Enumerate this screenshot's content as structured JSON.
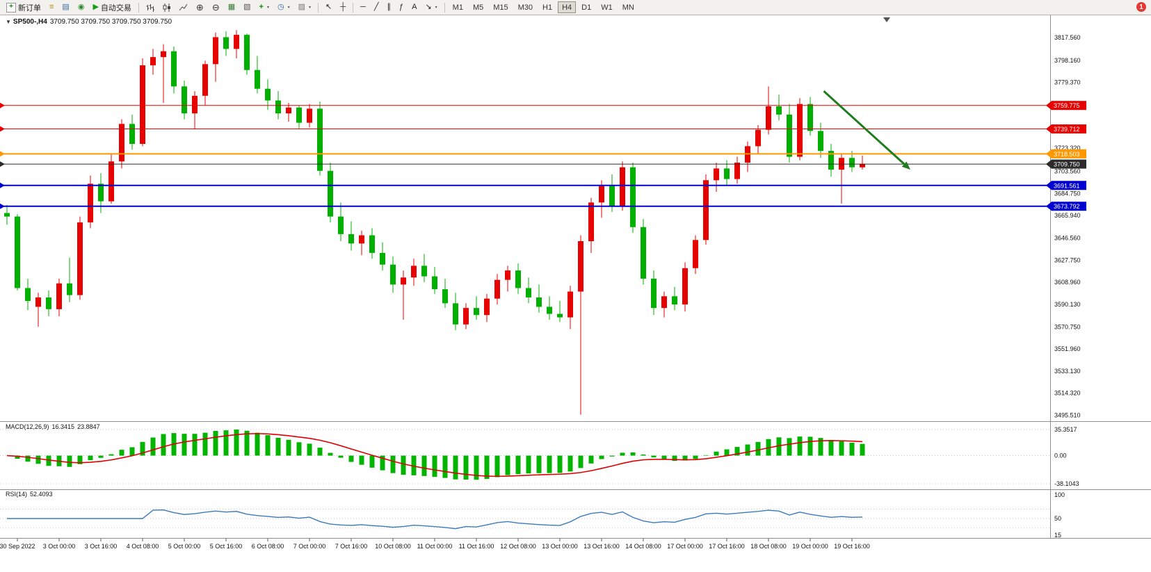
{
  "toolbar": {
    "new_order_label": "新订单",
    "auto_trading_label": "自动交易",
    "timeframes": [
      "M1",
      "M5",
      "M15",
      "M30",
      "H1",
      "H4",
      "D1",
      "W1",
      "MN"
    ],
    "active_timeframe": "H4",
    "notification_count": "1",
    "icons": [
      "new-order",
      "market-watch",
      "data-window",
      "navigator",
      "auto-trading-play",
      "bar-chart",
      "candlestick-chart",
      "line-chart",
      "zoom-in",
      "zoom-out",
      "tile-windows",
      "cascade-windows",
      "indicators-add",
      "periods-clock",
      "templates",
      "cursor",
      "crosshair",
      "horizontal-line",
      "trendline",
      "equidistant-channel",
      "fibonacci",
      "text-label",
      "arrows",
      "notification"
    ]
  },
  "chart": {
    "title_symbol": "SP500-,H4",
    "title_ohlc": "3709.750 3709.750 3709.750 3709.750"
  },
  "macd_panel": {
    "label": "MACD(12,26,9)",
    "value_main": "16.3415",
    "value_signal": "23.8847"
  },
  "rsi_panel": {
    "label": "RSI(14)",
    "value": "52.4093"
  },
  "chart_data": {
    "type": "candlestick",
    "symbol": "SP500-",
    "period": "H4",
    "colors": {
      "up": "#e60000",
      "down": "#00b000",
      "macd_hist": "#00b400",
      "macd_signal": "#e00000",
      "rsi_line": "#3a7abd",
      "trend_arrow": "#1e7d1e"
    },
    "price_axis": {
      "min": 3494,
      "max": 3826,
      "ticks": [
        "3817.560",
        "3798.160",
        "3779.370",
        "3723.320",
        "3703.560",
        "3684.750",
        "3665.940",
        "3646.560",
        "3627.750",
        "3608.960",
        "3590.130",
        "3570.750",
        "3551.960",
        "3533.130",
        "3514.320",
        "3495.510"
      ]
    },
    "levels": [
      {
        "label": "3759.775",
        "price": 3759.775,
        "color": "#e60000",
        "width": 1
      },
      {
        "label": "3739.712",
        "price": 3739.712,
        "color": "#e60000",
        "width": 1
      },
      {
        "label": "3718.503",
        "price": 3718.503,
        "color": "#ff9800",
        "width": 2
      },
      {
        "label": "3709.750",
        "price": 3709.75,
        "color": "#2b2b2b",
        "width": 1,
        "is_current_price": true
      },
      {
        "label": "3691.561",
        "price": 3691.561,
        "color": "#0000d0",
        "width": 2
      },
      {
        "label": "3673.792",
        "price": 3673.792,
        "color": "#0000d0",
        "width": 2
      }
    ],
    "macd_axis": [
      "35.3517",
      "0.00",
      "-38.1043"
    ],
    "rsi_axis": [
      "100",
      "50",
      "15"
    ],
    "rsi_levels": [
      70,
      50,
      30
    ],
    "trend_arrow": {
      "from_bar": 78.3,
      "from_price": 3772,
      "to_bar": 86.6,
      "to_price": 3705
    },
    "time_labels": [
      {
        "bar": 1,
        "text": "30 Sep 2022"
      },
      {
        "bar": 5,
        "text": "3 Oct 00:00"
      },
      {
        "bar": 9,
        "text": "3 Oct 16:00"
      },
      {
        "bar": 13,
        "text": "4 Oct 08:00"
      },
      {
        "bar": 17,
        "text": "5 Oct 00:00"
      },
      {
        "bar": 21,
        "text": "5 Oct 16:00"
      },
      {
        "bar": 25,
        "text": "6 Oct 08:00"
      },
      {
        "bar": 29,
        "text": "7 Oct 00:00"
      },
      {
        "bar": 33,
        "text": "7 Oct 16:00"
      },
      {
        "bar": 37,
        "text": "10 Oct 08:00"
      },
      {
        "bar": 41,
        "text": "11 Oct 00:00"
      },
      {
        "bar": 45,
        "text": "11 Oct 16:00"
      },
      {
        "bar": 49,
        "text": "12 Oct 08:00"
      },
      {
        "bar": 53,
        "text": "13 Oct 00:00"
      },
      {
        "bar": 57,
        "text": "13 Oct 16:00"
      },
      {
        "bar": 61,
        "text": "14 Oct 08:00"
      },
      {
        "bar": 65,
        "text": "17 Oct 00:00"
      },
      {
        "bar": 69,
        "text": "17 Oct 16:00"
      },
      {
        "bar": 73,
        "text": "18 Oct 08:00"
      },
      {
        "bar": 77,
        "text": "19 Oct 00:00"
      },
      {
        "bar": 81,
        "text": "19 Oct 16:00"
      }
    ],
    "candles": [
      [
        3668,
        3675,
        3658,
        3665
      ],
      [
        3665,
        3667,
        3602,
        3604
      ],
      [
        3604,
        3612,
        3585,
        3593
      ],
      [
        3588,
        3600,
        3571,
        3596
      ],
      [
        3596,
        3602,
        3580,
        3586
      ],
      [
        3586,
        3612,
        3580,
        3608
      ],
      [
        3608,
        3630,
        3592,
        3598
      ],
      [
        3598,
        3665,
        3594,
        3660
      ],
      [
        3660,
        3700,
        3655,
        3693
      ],
      [
        3693,
        3702,
        3668,
        3678
      ],
      [
        3678,
        3718,
        3676,
        3712
      ],
      [
        3712,
        3748,
        3706,
        3744
      ],
      [
        3744,
        3752,
        3722,
        3727
      ],
      [
        3727,
        3800,
        3725,
        3794
      ],
      [
        3794,
        3808,
        3786,
        3801
      ],
      [
        3801,
        3812,
        3762,
        3806
      ],
      [
        3806,
        3810,
        3770,
        3776
      ],
      [
        3776,
        3781,
        3748,
        3753
      ],
      [
        3753,
        3772,
        3740,
        3768
      ],
      [
        3768,
        3798,
        3760,
        3795
      ],
      [
        3795,
        3822,
        3780,
        3818
      ],
      [
        3818,
        3823,
        3802,
        3808
      ],
      [
        3808,
        3824,
        3800,
        3820
      ],
      [
        3820,
        3821,
        3786,
        3790
      ],
      [
        3790,
        3802,
        3770,
        3774
      ],
      [
        3774,
        3782,
        3756,
        3764
      ],
      [
        3764,
        3772,
        3748,
        3753
      ],
      [
        3753,
        3762,
        3746,
        3758
      ],
      [
        3758,
        3760,
        3740,
        3745
      ],
      [
        3745,
        3761,
        3741,
        3757
      ],
      [
        3757,
        3763,
        3700,
        3704
      ],
      [
        3704,
        3711,
        3660,
        3665
      ],
      [
        3665,
        3677,
        3644,
        3650
      ],
      [
        3650,
        3661,
        3636,
        3642
      ],
      [
        3642,
        3653,
        3632,
        3649
      ],
      [
        3649,
        3655,
        3629,
        3634
      ],
      [
        3634,
        3643,
        3619,
        3624
      ],
      [
        3624,
        3631,
        3600,
        3607
      ],
      [
        3607,
        3619,
        3577,
        3613
      ],
      [
        3613,
        3629,
        3606,
        3623
      ],
      [
        3623,
        3633,
        3609,
        3614
      ],
      [
        3614,
        3622,
        3599,
        3603
      ],
      [
        3603,
        3612,
        3587,
        3591
      ],
      [
        3591,
        3600,
        3568,
        3573
      ],
      [
        3573,
        3591,
        3569,
        3587
      ],
      [
        3587,
        3597,
        3577,
        3581
      ],
      [
        3581,
        3599,
        3575,
        3595
      ],
      [
        3595,
        3616,
        3590,
        3611
      ],
      [
        3611,
        3623,
        3601,
        3619
      ],
      [
        3619,
        3625,
        3599,
        3604
      ],
      [
        3604,
        3613,
        3591,
        3596
      ],
      [
        3596,
        3607,
        3583,
        3588
      ],
      [
        3588,
        3597,
        3577,
        3582
      ],
      [
        3582,
        3593,
        3575,
        3579
      ],
      [
        3579,
        3606,
        3569,
        3601
      ],
      [
        3601,
        3649,
        3496,
        3644
      ],
      [
        3644,
        3681,
        3634,
        3677
      ],
      [
        3677,
        3696,
        3664,
        3691
      ],
      [
        3691,
        3701,
        3669,
        3674
      ],
      [
        3674,
        3712,
        3670,
        3707
      ],
      [
        3707,
        3711,
        3651,
        3656
      ],
      [
        3656,
        3663,
        3607,
        3612
      ],
      [
        3612,
        3619,
        3581,
        3587
      ],
      [
        3587,
        3601,
        3579,
        3597
      ],
      [
        3597,
        3605,
        3585,
        3590
      ],
      [
        3590,
        3626,
        3584,
        3621
      ],
      [
        3621,
        3649,
        3616,
        3645
      ],
      [
        3645,
        3701,
        3641,
        3696
      ],
      [
        3696,
        3711,
        3686,
        3706
      ],
      [
        3706,
        3713,
        3691,
        3697
      ],
      [
        3697,
        3716,
        3693,
        3711
      ],
      [
        3711,
        3729,
        3703,
        3725
      ],
      [
        3725,
        3743,
        3719,
        3739
      ],
      [
        3739,
        3776,
        3735,
        3759
      ],
      [
        3759,
        3769,
        3747,
        3752
      ],
      [
        3752,
        3761,
        3711,
        3716
      ],
      [
        3716,
        3766,
        3713,
        3761
      ],
      [
        3761,
        3767,
        3734,
        3738
      ],
      [
        3738,
        3745,
        3715,
        3721
      ],
      [
        3721,
        3727,
        3699,
        3705
      ],
      [
        3705,
        3719,
        3676,
        3715
      ],
      [
        3715,
        3721,
        3703,
        3707
      ],
      [
        3707,
        3717,
        3705,
        3710
      ]
    ]
  }
}
